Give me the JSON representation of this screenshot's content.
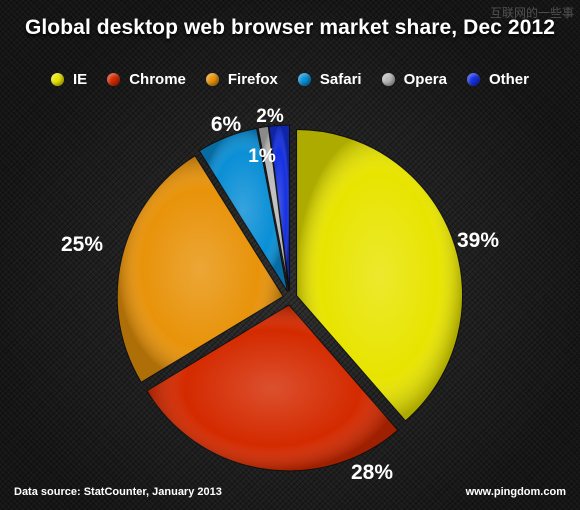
{
  "title": "Global desktop web browser market share, Dec 2012",
  "watermark": "互联网的一些事",
  "legend": [
    {
      "label": "IE",
      "color": "#e8e400"
    },
    {
      "label": "Chrome",
      "color": "#d42a00"
    },
    {
      "label": "Firefox",
      "color": "#e8930a"
    },
    {
      "label": "Safari",
      "color": "#0a8fd6"
    },
    {
      "label": "Opera",
      "color": "#b8b8b8"
    },
    {
      "label": "Other",
      "color": "#1530e0"
    }
  ],
  "chart_data": {
    "type": "pie",
    "title": "Global desktop web browser market share, Dec 2012",
    "slices": [
      {
        "name": "IE",
        "value": 39,
        "label": "39%",
        "color": "#e8e400"
      },
      {
        "name": "Chrome",
        "value": 28,
        "label": "28%",
        "color": "#d42a00"
      },
      {
        "name": "Firefox",
        "value": 25,
        "label": "25%",
        "color": "#e8930a"
      },
      {
        "name": "Safari",
        "value": 6,
        "label": "6%",
        "color": "#0a8fd6"
      },
      {
        "name": "Opera",
        "value": 1,
        "label": "1%",
        "color": "#b8b8b8"
      },
      {
        "name": "Other",
        "value": 2,
        "label": "2%",
        "color": "#1530e0"
      }
    ],
    "legend_position": "top"
  },
  "footer": {
    "source": "Data source: StatCounter, January 2013",
    "site": "www.pingdom.com"
  }
}
